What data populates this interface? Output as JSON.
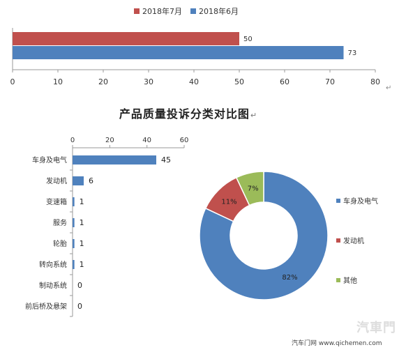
{
  "chart_data": [
    {
      "type": "bar",
      "orientation": "horizontal",
      "title": "",
      "categories": [
        ""
      ],
      "series": [
        {
          "name": "2018年7月",
          "color": "#C0504D",
          "values": [
            50
          ]
        },
        {
          "name": "2018年6月",
          "color": "#4F81BD",
          "values": [
            73
          ]
        }
      ],
      "xlim": [
        0,
        80
      ],
      "xticks": [
        "0",
        "10",
        "20",
        "30",
        "40",
        "50",
        "60",
        "70",
        "80"
      ],
      "legend": "top",
      "grid": false
    },
    {
      "type": "bar",
      "orientation": "horizontal",
      "title": "产品质量投诉分类对比图",
      "categories": [
        "车身及电气",
        "发动机",
        "变速箱",
        "服务",
        "轮胎",
        "转向系统",
        "制动系统",
        "前后桥及悬架"
      ],
      "values": [
        45,
        6,
        1,
        1,
        1,
        1,
        0,
        0
      ],
      "value_labels": [
        "45",
        "6",
        "1",
        "1",
        "1",
        "1",
        "0",
        "0"
      ],
      "color": "#4F81BD",
      "xlim": [
        0,
        60
      ],
      "xticks": [
        "0",
        "20",
        "40",
        "60"
      ],
      "axis_position": "top",
      "grid": false
    },
    {
      "type": "pie",
      "style": "donut",
      "labels": [
        "车身及电气",
        "发动机",
        "其他"
      ],
      "values": [
        82,
        11,
        7
      ],
      "value_labels": [
        "82%",
        "11%",
        "7%"
      ],
      "colors": [
        "#4F81BD",
        "#C0504D",
        "#9BBB59"
      ],
      "legend": "right"
    }
  ],
  "footer": {
    "source": "汽车门网 www.qichemen.com",
    "logo_text": "汽車門"
  },
  "title_mark": "↵"
}
